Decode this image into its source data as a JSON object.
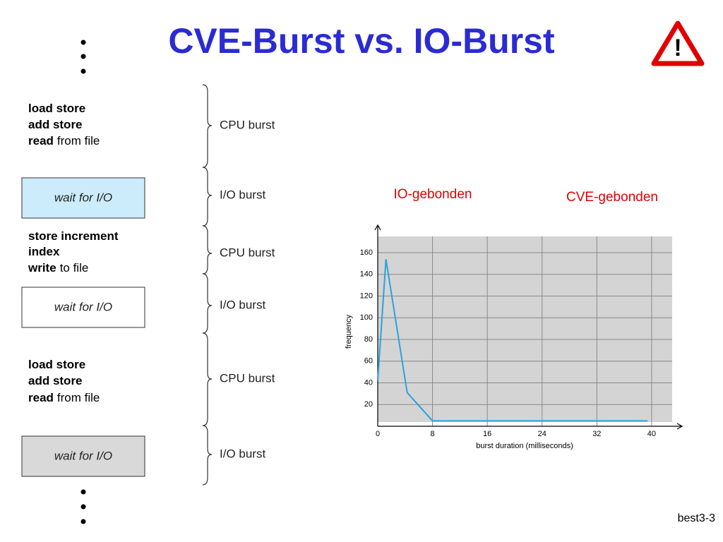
{
  "title": "CVE-Burst vs. IO-Burst",
  "footer": "best3-3",
  "diagram": {
    "steps": [
      {
        "lines": [
          {
            "bold": "load store"
          },
          {
            "bold": "add store"
          },
          {
            "bold": "read",
            "text": "from file"
          }
        ],
        "burst": "CPU burst"
      },
      {
        "wait": "wait for I/O",
        "box_color": "#ccecfb",
        "burst": "I/O burst"
      },
      {
        "lines": [
          {
            "bold": "store increment"
          },
          {
            "bold": "index"
          },
          {
            "bold": "write",
            "text": "to file"
          }
        ],
        "burst": "CPU burst"
      },
      {
        "wait": "wait for I/O",
        "box_color": "#ffffff",
        "burst": "I/O burst"
      },
      {
        "lines": [
          {
            "bold": "load store"
          },
          {
            "bold": "add store"
          },
          {
            "bold": "read",
            "text": "from file"
          }
        ],
        "burst": "CPU burst"
      },
      {
        "wait": "wait for I/O",
        "box_color": "#d9d9d9",
        "burst": "I/O burst"
      }
    ]
  },
  "chart_data": {
    "type": "line",
    "annotations": [
      {
        "text": "IO-gebonden",
        "color": "#e00000"
      },
      {
        "text": "CVE-gebonden",
        "color": "#e00000"
      }
    ],
    "xlabel": "burst duration (milliseconds)",
    "ylabel": "frequency",
    "x": [
      0,
      1.2,
      4.3,
      8,
      39.4
    ],
    "series": [
      {
        "color": "#29a3dc",
        "values": [
          42,
          154,
          31,
          5,
          5
        ]
      }
    ],
    "xlim": [
      0,
      43
    ],
    "ylim": [
      0,
      175
    ],
    "xticks": [
      0,
      8,
      16,
      24,
      32,
      40
    ],
    "yticks": [
      20,
      40,
      60,
      80,
      100,
      120,
      140,
      160
    ],
    "grid": true,
    "background": "#d4d4d4"
  }
}
